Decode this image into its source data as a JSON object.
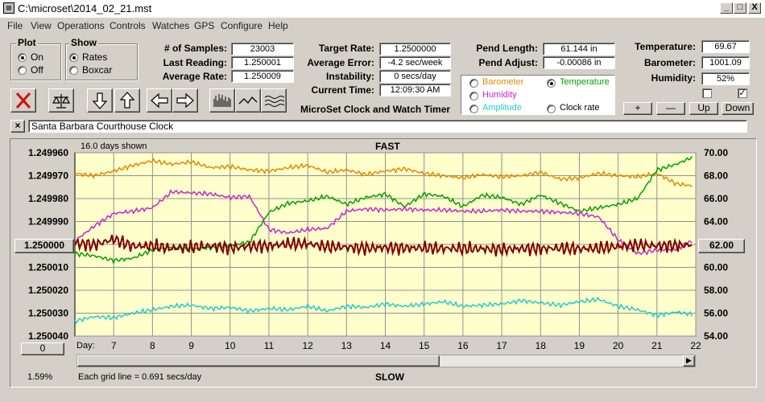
{
  "window": {
    "title": "C:\\microset\\2014_02_21.mst",
    "icon": "app-icon",
    "buttons": {
      "minimize": "_",
      "maximize": "□",
      "close": "X"
    }
  },
  "menu": [
    "File",
    "View",
    "Operations",
    "Controls",
    "Watches",
    "GPS",
    "Configure",
    "Help"
  ],
  "plot_group": {
    "title": "Plot",
    "on_label": "On",
    "off_label": "Off",
    "selected": "On"
  },
  "show_group": {
    "title": "Show",
    "rates_label": "Rates",
    "boxcar_label": "Boxcar",
    "selected": "Rates"
  },
  "stats": {
    "samples_label": "# of Samples:",
    "samples_value": "23003",
    "last_label": "Last Reading:",
    "last_value": "1.250001",
    "avg_label": "Average Rate:",
    "avg_value": "1.250009"
  },
  "rates": {
    "target_label": "Target Rate:",
    "target_value": "1.2500000",
    "error_label": "Average Error:",
    "error_value": "-4.2 sec/week",
    "instab_label": "Instability:",
    "instab_value": "0 secs/day",
    "time_label": "Current Time:",
    "time_value": "12:09:30 AM"
  },
  "app_caption": "MicroSet Clock and Watch Timer",
  "pendulum": {
    "length_label": "Pend Length:",
    "length_value": "61.144 in",
    "adjust_label": "Pend Adjust:",
    "adjust_value": "-0.00086 in"
  },
  "env": {
    "temp_label": "Temperature:",
    "temp_value": "69.67",
    "baro_label": "Barometer:",
    "baro_value": "1001.09",
    "hum_label": "Humidity:",
    "hum_value": "52%",
    "check1": false,
    "check2": true
  },
  "legend": {
    "items": [
      {
        "label": "Barometer",
        "color": "#e08a00",
        "selected": false
      },
      {
        "label": "Temperature",
        "color": "#00a000",
        "selected": true
      },
      {
        "label": "Humidity",
        "color": "#cc22cc",
        "selected": false
      },
      {
        "label": "Clock rate",
        "color": "#000000",
        "selected": false
      },
      {
        "label": "Amplitude",
        "color": "#22cccc",
        "selected": false
      }
    ]
  },
  "scale_buttons": {
    "plus": "+",
    "minus": "—",
    "up": "Up",
    "down": "Down"
  },
  "toolbar_icons": [
    "close-x-icon",
    "balance-scale-icon",
    "arrow-down-icon",
    "arrow-up-icon",
    "arrow-left-icon",
    "arrow-right-icon",
    "bars-icon",
    "line-icon",
    "wave-icon"
  ],
  "name_bar": {
    "close": "×",
    "value": "Santa Barbara Courthouse Clock"
  },
  "plot": {
    "top_label": "FAST",
    "bottom_label": "SLOW",
    "days_shown": "16.0 days shown",
    "grid_note": "Each grid line = 0.691 secs/day",
    "percent": "1.59%",
    "left_center_value": "1.250000",
    "right_center_value": "62.00",
    "bottom_left_value": "0",
    "day_label": "Day:",
    "bg_color": "#ffffcc"
  },
  "chart_data": {
    "type": "line",
    "title": "",
    "x_label": "Day:",
    "x_ticks": [
      "7",
      "8",
      "9",
      "10",
      "11",
      "12",
      "13",
      "14",
      "15",
      "16",
      "17",
      "18",
      "19",
      "20",
      "21",
      "22"
    ],
    "xlim": [
      6.0,
      22.0
    ],
    "y_left_ticks": [
      "1.249960",
      "1.249970",
      "1.249980",
      "1.249990",
      "1.250000",
      "1.250010",
      "1.250020",
      "1.250030",
      "1.250040"
    ],
    "y_left_lim": [
      1.25004,
      1.24996
    ],
    "y_right_ticks": [
      "70.00",
      "68.00",
      "66.00",
      "64.00",
      "62.00",
      "60.00",
      "58.00",
      "56.00",
      "54.00"
    ],
    "y_right_lim": [
      54.0,
      70.0
    ],
    "grid": true,
    "series": [
      {
        "color": "#e08a00",
        "axis": "right",
        "x": [
          6.0,
          6.5,
          7.0,
          7.5,
          8.0,
          8.5,
          9.0,
          9.5,
          10.0,
          10.5,
          11.0,
          11.5,
          12.0,
          12.5,
          13.0,
          13.5,
          14.0,
          14.5,
          15.0,
          15.5,
          16.0,
          16.5,
          17.0,
          17.5,
          18.0,
          18.5,
          19.0,
          19.5,
          20.0,
          20.5,
          21.0,
          21.5,
          21.9
        ],
        "y": [
          68.2,
          68.0,
          68.4,
          68.9,
          69.3,
          69.0,
          69.2,
          68.7,
          68.8,
          68.5,
          68.4,
          68.7,
          68.9,
          68.3,
          68.5,
          68.1,
          68.4,
          68.6,
          68.2,
          68.0,
          67.8,
          68.1,
          67.9,
          68.0,
          68.3,
          67.7,
          67.8,
          68.2,
          68.0,
          67.9,
          68.2,
          67.3,
          67.1
        ]
      },
      {
        "color": "#00a000",
        "axis": "right",
        "x": [
          6.0,
          6.5,
          7.0,
          7.5,
          8.0,
          8.5,
          9.0,
          9.5,
          10.0,
          10.5,
          11.0,
          11.5,
          12.0,
          12.5,
          13.0,
          13.5,
          14.0,
          14.5,
          15.0,
          15.5,
          16.0,
          16.5,
          17.0,
          17.5,
          18.0,
          18.5,
          19.0,
          19.5,
          20.0,
          20.5,
          21.0,
          21.5,
          21.9
        ],
        "y": [
          61.2,
          61.0,
          60.6,
          60.8,
          61.5,
          61.8,
          61.6,
          61.7,
          61.9,
          62.2,
          64.8,
          65.6,
          65.8,
          66.2,
          65.5,
          66.1,
          66.4,
          65.3,
          66.4,
          66.2,
          65.3,
          66.3,
          66.1,
          65.5,
          66.3,
          65.6,
          64.9,
          65.2,
          65.5,
          66.0,
          68.5,
          69.0,
          69.6
        ]
      },
      {
        "color": "#cc22cc",
        "axis": "right",
        "x": [
          6.0,
          6.5,
          7.0,
          7.5,
          8.0,
          8.5,
          9.0,
          9.5,
          10.0,
          10.5,
          11.0,
          11.5,
          12.0,
          12.5,
          13.0,
          13.5,
          14.0,
          14.5,
          15.0,
          15.5,
          16.0,
          16.5,
          17.0,
          17.5,
          18.0,
          18.5,
          19.0,
          19.5,
          20.0,
          20.5,
          21.0,
          21.5,
          21.9
        ],
        "y": [
          62.3,
          63.6,
          64.7,
          64.9,
          65.2,
          66.6,
          66.5,
          66.4,
          66.1,
          66.2,
          63.3,
          63.0,
          63.3,
          63.4,
          64.9,
          65.1,
          65.0,
          65.1,
          65.0,
          65.0,
          64.9,
          64.9,
          65.0,
          64.9,
          64.9,
          64.8,
          64.7,
          64.4,
          62.4,
          61.2,
          61.5,
          61.6,
          62.3
        ]
      },
      {
        "color": "#800000",
        "axis": "left",
        "x": [
          6.0,
          6.5,
          7.0,
          7.5,
          8.0,
          8.5,
          9.0,
          9.5,
          10.0,
          10.5,
          11.0,
          11.5,
          12.0,
          12.5,
          13.0,
          13.5,
          14.0,
          14.5,
          15.0,
          15.5,
          16.0,
          16.5,
          17.0,
          17.5,
          18.0,
          18.5,
          19.0,
          19.5,
          20.0,
          20.5,
          21.0,
          21.5,
          21.9
        ],
        "y": [
          1.2499995,
          1.2500002,
          1.2499977,
          1.2500008,
          1.2500006,
          1.2500018,
          1.2500012,
          1.2500006,
          1.2500016,
          1.2500008,
          1.2500006,
          1.2499997,
          1.2499997,
          1.250001,
          1.2500012,
          1.2500017,
          1.2500013,
          1.2500016,
          1.2500015,
          1.2500017,
          1.2500018,
          1.2500019,
          1.2500022,
          1.2500018,
          1.2500019,
          1.2500016,
          1.2500019,
          1.2500017,
          1.2500009,
          1.2500002,
          1.2500006,
          1.2500004,
          1.2500001
        ]
      },
      {
        "color": "#22cccc",
        "axis": "right",
        "x": [
          6.0,
          6.5,
          7.0,
          7.5,
          8.0,
          8.5,
          9.0,
          9.5,
          10.0,
          10.5,
          11.0,
          11.5,
          12.0,
          12.5,
          13.0,
          13.5,
          14.0,
          14.5,
          15.0,
          15.5,
          16.0,
          16.5,
          17.0,
          17.5,
          18.0,
          18.5,
          19.0,
          19.5,
          20.0,
          20.5,
          21.0,
          21.5,
          21.9
        ],
        "y": [
          55.3,
          55.7,
          55.6,
          56.0,
          56.3,
          56.6,
          56.7,
          56.4,
          56.5,
          56.2,
          56.4,
          56.3,
          56.6,
          56.2,
          56.6,
          56.5,
          56.8,
          56.6,
          56.8,
          57.0,
          56.6,
          56.7,
          56.8,
          57.1,
          56.9,
          56.7,
          57.0,
          57.2,
          56.6,
          56.3,
          55.8,
          56.1,
          55.9
        ]
      }
    ]
  }
}
